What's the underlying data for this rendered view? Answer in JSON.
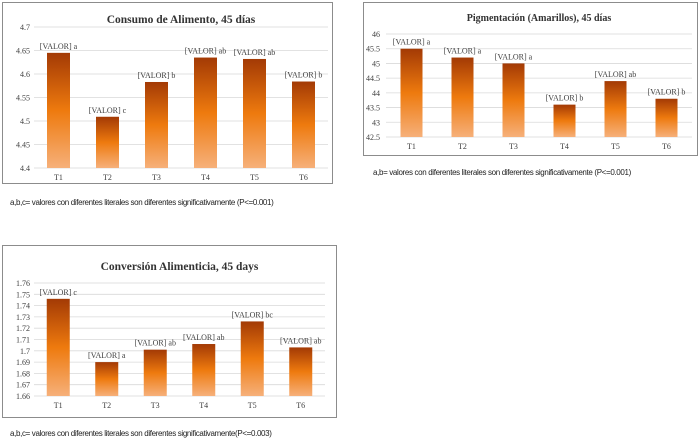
{
  "chart_data": [
    {
      "type": "bar",
      "title": "Consumo de Alimento, 45 días",
      "categories": [
        "T1",
        "T2",
        "T3",
        "T4",
        "T5",
        "T6"
      ],
      "values": [
        4.645,
        4.509,
        4.583,
        4.635,
        4.632,
        4.584
      ],
      "data_labels": [
        "[VALOR] a",
        "[VALOR] c",
        "[VALOR] b",
        "[VALOR] ab",
        "[VALOR] ab",
        "[VALOR] b"
      ],
      "yticks": [
        "4.4",
        "4.45",
        "4.5",
        "4.55",
        "4.6",
        "4.65",
        "4.7"
      ],
      "ylim": [
        4.4,
        4.7
      ],
      "xlabel": "",
      "ylabel": "",
      "grid": true,
      "caption": "a,b,c= valores con diferentes literales son diferentes significativamente (P<=0.001)"
    },
    {
      "type": "bar",
      "title": "Pigmentación (Amarillos), 45 días",
      "categories": [
        "T1",
        "T2",
        "T3",
        "T4",
        "T5",
        "T6"
      ],
      "values": [
        45.5,
        45.2,
        45.0,
        43.6,
        44.4,
        43.8
      ],
      "data_labels": [
        "[VALOR] a",
        "[VALOR] a",
        "[VALOR] a",
        "[VALOR] b",
        "[VALOR] ab",
        "[VALOR] b"
      ],
      "yticks": [
        "42.5",
        "43",
        "43.5",
        "44",
        "44.5",
        "45",
        "45.5",
        "46"
      ],
      "ylim": [
        42.5,
        46
      ],
      "xlabel": "",
      "ylabel": "",
      "grid": true,
      "caption": "a,b= valores con diferentes literales son diferentes significativamente (P<=0.001)"
    },
    {
      "type": "bar",
      "title": "Conversión Alimenticia, 45 days",
      "categories": [
        "T1",
        "T2",
        "T3",
        "T4",
        "T5",
        "T6"
      ],
      "values": [
        1.746,
        1.69,
        1.701,
        1.706,
        1.726,
        1.703
      ],
      "data_labels": [
        "[VALOR] c",
        "[VALOR] a",
        "[VALOR] ab",
        "[VALOR] ab",
        "[VALOR] bc",
        "[VALOR] ab"
      ],
      "yticks": [
        "1.66",
        "1.67",
        "1.68",
        "1.69",
        "1.7",
        "1.71",
        "1.72",
        "1.73",
        "1.74",
        "1.75",
        "1.76"
      ],
      "ylim": [
        1.66,
        1.76
      ],
      "xlabel": "",
      "ylabel": "",
      "grid": true,
      "caption": "a,b,c= valores con diferentes literales son diferentes significativamente(P<=0.003)"
    }
  ],
  "colors": {
    "bar_top": "#a33a05",
    "bar_mid": "#ee7a0e",
    "bar_bottom": "#f6b07a",
    "grid": "#d9d9d9",
    "text": "#404040"
  }
}
